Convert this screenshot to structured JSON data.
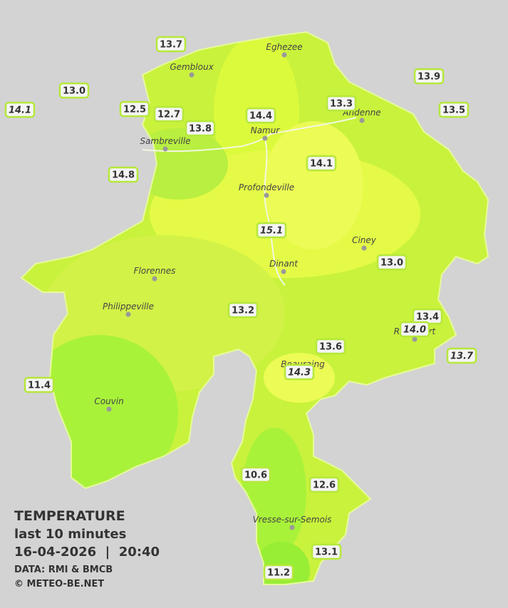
{
  "cities": [
    "Eghezee",
    "Gembloux",
    "Andenne",
    "Namur",
    "Sambreville",
    "Profondeville",
    "Ciney",
    "Dinant",
    "Florennes",
    "Philippeville",
    "Rochefort",
    "Beauraing",
    "Couvin",
    "Vresse-sur-Semois"
  ],
  "stations": [
    "13.7",
    "13.0",
    "14.1",
    "12.5",
    "12.7",
    "13.8",
    "14.4",
    "13.3",
    "13.9",
    "13.5",
    "14.8",
    "14.1",
    "15.1",
    "13.0",
    "13.2",
    "13.4",
    "14.0",
    "13.6",
    "14.3",
    "13.7",
    "11.4",
    "10.6",
    "12.6",
    "13.1",
    "11.2"
  ],
  "legend": {
    "title": "TEMPERATURE",
    "subtitle": "last 10 minutes",
    "timestamp": "16-04-2026  |  20:40",
    "source": "DATA: RMI & BMCB",
    "copyright": "© METEO-BE.NET"
  }
}
